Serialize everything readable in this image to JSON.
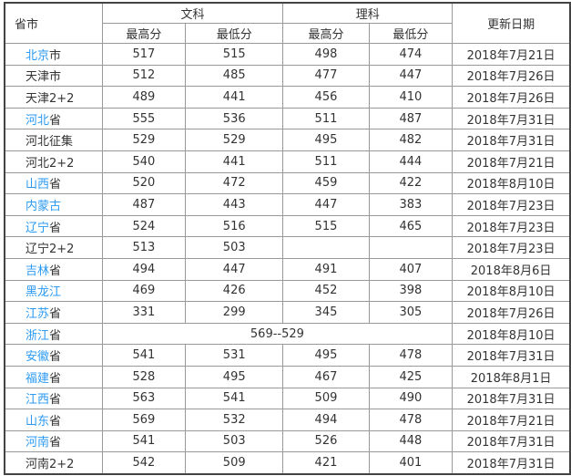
{
  "colors": {
    "link": "#2b9af3",
    "text": "#333333",
    "border": "#999999"
  },
  "headers": {
    "province": "省市",
    "arts": "文科",
    "science": "理科",
    "date": "更新日期",
    "max": "最高分",
    "min": "最低分"
  },
  "rows": [
    {
      "link": "北京",
      "suffix": "市",
      "a_max": "517",
      "a_min": "515",
      "s_max": "498",
      "s_min": "474",
      "date": "2018年7月21日"
    },
    {
      "link": "",
      "suffix": "天津市",
      "a_max": "512",
      "a_min": "485",
      "s_max": "477",
      "s_min": "447",
      "date": "2018年7月26日"
    },
    {
      "link": "",
      "suffix": "天津2+2",
      "a_max": "489",
      "a_min": "441",
      "s_max": "456",
      "s_min": "410",
      "date": "2018年7月26日"
    },
    {
      "link": "河北",
      "suffix": "省",
      "a_max": "555",
      "a_min": "536",
      "s_max": "511",
      "s_min": "487",
      "date": "2018年7月31日"
    },
    {
      "link": "",
      "suffix": "河北征集",
      "a_max": "529",
      "a_min": "529",
      "s_max": "495",
      "s_min": "482",
      "date": "2018年7月31日"
    },
    {
      "link": "",
      "suffix": "河北2+2",
      "a_max": "540",
      "a_min": "441",
      "s_max": "511",
      "s_min": "444",
      "date": "2018年7月21日"
    },
    {
      "link": "山西",
      "suffix": "省",
      "a_max": "520",
      "a_min": "472",
      "s_max": "459",
      "s_min": "422",
      "date": "2018年8月10日"
    },
    {
      "link": "内蒙古",
      "suffix": "",
      "a_max": "487",
      "a_min": "443",
      "s_max": "447",
      "s_min": "383",
      "date": "2018年7月23日"
    },
    {
      "link": "辽宁",
      "suffix": "省",
      "a_max": "524",
      "a_min": "516",
      "s_max": "515",
      "s_min": "465",
      "date": "2018年7月23日"
    },
    {
      "link": "",
      "suffix": "辽宁2+2",
      "a_max": "513",
      "a_min": "503",
      "s_max": "",
      "s_min": "",
      "date": "2018年7月23日"
    },
    {
      "link": "吉林",
      "suffix": "省",
      "a_max": "494",
      "a_min": "447",
      "s_max": "491",
      "s_min": "407",
      "date": "2018年8月6日"
    },
    {
      "link": "黑龙江",
      "suffix": "",
      "a_max": "469",
      "a_min": "426",
      "s_max": "452",
      "s_min": "398",
      "date": "2018年8月10日"
    },
    {
      "link": "江苏",
      "suffix": "省",
      "a_max": "331",
      "a_min": "299",
      "s_max": "345",
      "s_min": "305",
      "date": "2018年7月26日"
    },
    {
      "link": "浙江",
      "suffix": "省",
      "merged": "569--529",
      "date": "2018年8月10日"
    },
    {
      "link": "安徽",
      "suffix": "省",
      "a_max": "541",
      "a_min": "531",
      "s_max": "495",
      "s_min": "478",
      "date": "2018年7月31日"
    },
    {
      "link": "福建",
      "suffix": "省",
      "a_max": "528",
      "a_min": "495",
      "s_max": "467",
      "s_min": "425",
      "date": "2018年8月1日"
    },
    {
      "link": "江西",
      "suffix": "省",
      "a_max": "563",
      "a_min": "541",
      "s_max": "509",
      "s_min": "490",
      "date": "2018年7月31日"
    },
    {
      "link": "山东",
      "suffix": "省",
      "a_max": "569",
      "a_min": "532",
      "s_max": "494",
      "s_min": "478",
      "date": "2018年7月21日"
    },
    {
      "link": "河南",
      "suffix": "省",
      "a_max": "541",
      "a_min": "503",
      "s_max": "526",
      "s_min": "448",
      "date": "2018年7月31日"
    },
    {
      "link": "",
      "suffix": "河南2+2",
      "a_max": "542",
      "a_min": "509",
      "s_max": "421",
      "s_min": "401",
      "date": "2018年7月31日"
    }
  ]
}
